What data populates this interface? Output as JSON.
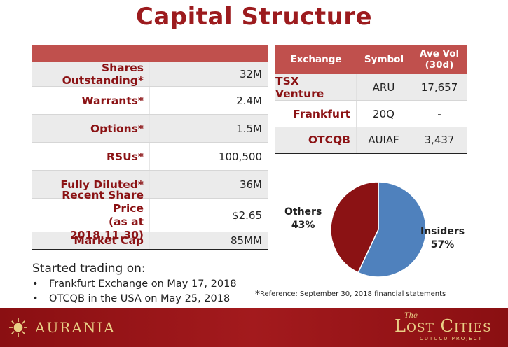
{
  "title": "Capital Structure",
  "capital_table": {
    "rows": [
      {
        "label": "Shares Outstanding*",
        "value": "32M"
      },
      {
        "label": "Warrants*",
        "value": "2.4M"
      },
      {
        "label": "Options*",
        "value": "1.5M"
      },
      {
        "label": "RSUs*",
        "value": "100,500"
      },
      {
        "label": "Fully Diluted*",
        "value": "36M"
      },
      {
        "label_line1": "Recent Share Price",
        "label_line2": "(as at 2018.11.30)",
        "value": "$2.65"
      },
      {
        "label": "Market Cap",
        "value": "85MM"
      }
    ]
  },
  "exchange_table": {
    "headers": {
      "exchange": "Exchange",
      "symbol": "Symbol",
      "vol_line1": "Ave Vol",
      "vol_line2": "(30d)"
    },
    "rows": [
      {
        "exchange": "TSX Venture",
        "symbol": "ARU",
        "vol": "17,657"
      },
      {
        "exchange": "Frankfurt",
        "symbol": "20Q",
        "vol": "-"
      },
      {
        "exchange": "OTCQB",
        "symbol": "AUIAF",
        "vol": "3,437"
      }
    ]
  },
  "chart_data": {
    "type": "pie",
    "labels": [
      "Insiders",
      "Others"
    ],
    "values": [
      57,
      43
    ],
    "value_labels": [
      "57%",
      "43%"
    ],
    "colors": [
      "#4f81bd",
      "#8b1214"
    ]
  },
  "started": {
    "heading": "Started trading on:",
    "items": [
      "Frankfurt Exchange on May 17, 2018",
      "OTCQB in the USA on May 25, 2018"
    ]
  },
  "reference": {
    "star": "*",
    "text": "Reference: September 30, 2018 financial statements"
  },
  "footer": {
    "left_logo": "Aurania",
    "right_logo_the": "The",
    "right_logo_name": "Lost Cities",
    "right_logo_sub": "Cutucu Project"
  }
}
